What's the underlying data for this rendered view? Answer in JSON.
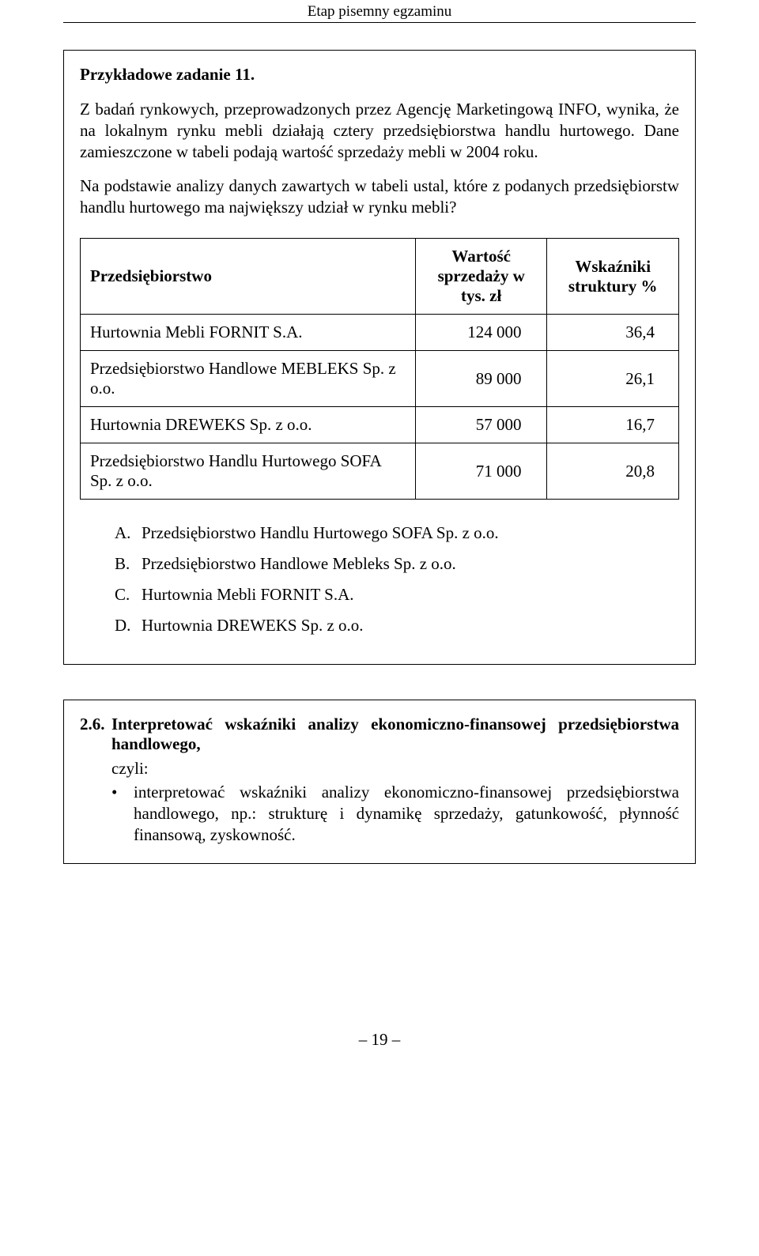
{
  "header": {
    "running": "Etap pisemny egzaminu"
  },
  "task": {
    "title": "Przykładowe zadanie 11.",
    "para1": "Z badań rynkowych, przeprowadzonych przez Agencję Marketingową INFO, wynika, że na lokalnym rynku mebli działają cztery przedsiębiorstwa handlu hurtowego. Dane zamieszczone w tabeli podają wartość sprzedaży mebli w 2004 roku.",
    "para2": "Na podstawie analizy danych zawartych w tabeli ustal, które z podanych przedsiębiorstw handlu hurtowego ma największy udział w rynku mebli?",
    "table": {
      "columns": {
        "company": "Przedsiębiorstwo",
        "value": "Wartość sprzedaży w tys. zł",
        "indicator": "Wskaźniki struktury %"
      },
      "rows": [
        {
          "company": "Hurtownia Mebli FORNIT S.A.",
          "value": "124 000",
          "indicator": "36,4"
        },
        {
          "company": "Przedsiębiorstwo Handlowe MEBLEKS Sp. z o.o.",
          "value": "89 000",
          "indicator": "26,1"
        },
        {
          "company": "Hurtownia DREWEKS Sp. z o.o.",
          "value": "57 000",
          "indicator": "16,7"
        },
        {
          "company": "Przedsiębiorstwo Handlu Hurtowego SOFA Sp. z o.o.",
          "value": "71 000",
          "indicator": "20,8"
        }
      ]
    },
    "answers": [
      {
        "letter": "A.",
        "text": "Przedsiębiorstwo Handlu Hurtowego SOFA Sp. z o.o."
      },
      {
        "letter": "B.",
        "text": "Przedsiębiorstwo Handlowe Mebleks Sp. z o.o."
      },
      {
        "letter": "C.",
        "text": "Hurtownia Mebli FORNIT S.A."
      },
      {
        "letter": "D.",
        "text": "Hurtownia DREWEKS Sp. z o.o."
      }
    ]
  },
  "section": {
    "num": "2.6.",
    "title": "Interpretować wskaźniki analizy ekonomiczno-finansowej przedsiębiorstwa handlowego,",
    "czyli": "czyli:",
    "bullet": "interpretować wskaźniki analizy ekonomiczno-finansowej przedsiębiorstwa handlowego, np.: strukturę i dynamikę sprzedaży, gatunkowość, płynność finansową, zyskowność."
  },
  "footer": {
    "page": "– 19 –"
  }
}
